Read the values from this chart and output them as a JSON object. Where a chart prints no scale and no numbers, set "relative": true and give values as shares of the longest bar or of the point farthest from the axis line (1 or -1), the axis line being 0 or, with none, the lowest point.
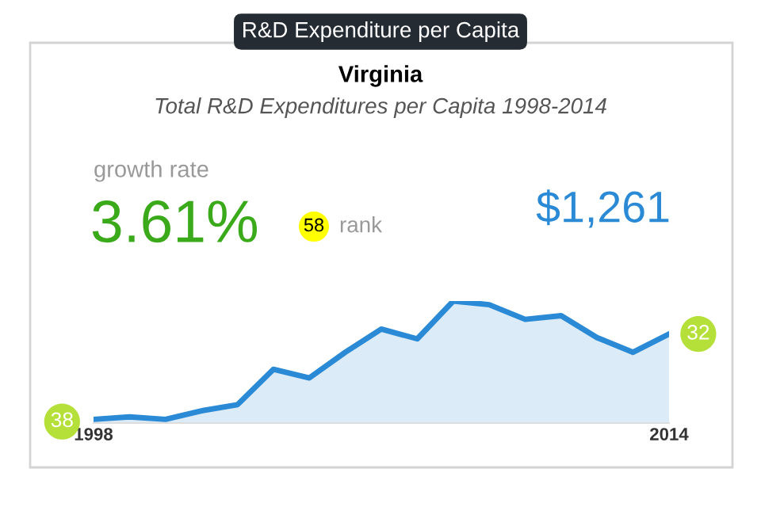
{
  "chart_data": {
    "type": "area",
    "title": "Virginia",
    "subtitle": "Total R&D Expenditures per Capita 1998-2014",
    "categories": [
      "1998",
      null,
      null,
      null,
      null,
      null,
      null,
      null,
      null,
      null,
      null,
      null,
      null,
      null,
      null,
      null,
      "2014"
    ],
    "relative": true,
    "tick_labels": "x",
    "grid": false,
    "marker": "none",
    "line_style": "solid",
    "series": [
      {
        "color": "#2a8ad6",
        "values": [
          0.03,
          0.05,
          0.03,
          0.1,
          0.15,
          0.44,
          0.37,
          0.58,
          0.77,
          0.69,
          1,
          0.97,
          0.85,
          0.88,
          0.7,
          0.58,
          0.73
        ]
      }
    ],
    "annotations": [
      "R&D Expenditure per Capita",
      "growth rate",
      "3.61%",
      "58",
      "rank",
      "$1,261",
      {
        "text": "38",
        "x": "1998",
        "y": 0.03
      },
      {
        "text": "32",
        "x": "2014",
        "y": 0.73
      }
    ]
  }
}
